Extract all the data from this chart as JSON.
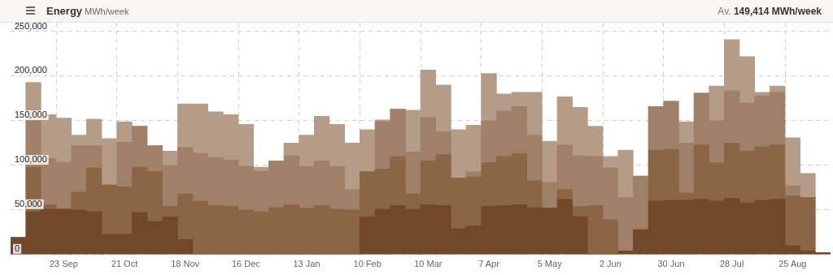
{
  "chart_data": {
    "type": "bar",
    "title": "Energy",
    "subtitle": "MWh/week",
    "annotations": [
      "Av. 149,414 MWh/week"
    ],
    "categories": [
      null,
      null,
      null,
      "23 Sep",
      null,
      null,
      null,
      "21 Oct",
      null,
      null,
      null,
      "18 Nov",
      null,
      null,
      null,
      "16 Dec",
      null,
      null,
      null,
      "13 Jan",
      null,
      null,
      null,
      "10 Feb",
      null,
      null,
      null,
      "10 Mar",
      null,
      null,
      null,
      "7 Apr",
      null,
      null,
      null,
      "5 May",
      null,
      null,
      null,
      "2 Jun",
      null,
      null,
      null,
      "30 Jun",
      null,
      null,
      null,
      "28 Jul",
      null,
      null,
      null,
      "25 Aug",
      null,
      null
    ],
    "stacked": true,
    "series": [
      {
        "color": "#71492a",
        "values": [
          19000,
          48000,
          51000,
          51000,
          50000,
          48000,
          23000,
          23000,
          47000,
          37000,
          42000,
          17000,
          0,
          0,
          0,
          0,
          0,
          0,
          0,
          0,
          0,
          0,
          0,
          42000,
          51000,
          55000,
          51000,
          56000,
          55000,
          29000,
          32000,
          54000,
          55000,
          56000,
          53000,
          52000,
          62000,
          43000,
          0,
          0,
          4000,
          28000,
          60000,
          61000,
          61000,
          62000,
          60000,
          63000,
          58000,
          61000,
          62000,
          10000,
          4000,
          2000
        ]
      },
      {
        "color": "#8a6646",
        "values": [
          0,
          50000,
          5000,
          0,
          20000,
          49000,
          55000,
          53000,
          51000,
          56000,
          12000,
          51000,
          60000,
          55000,
          54000,
          50000,
          48000,
          53000,
          56000,
          52000,
          55000,
          51000,
          50000,
          51000,
          45000,
          55000,
          17000,
          49000,
          57000,
          57000,
          55000,
          49000,
          55000,
          57000,
          30000,
          0,
          11000,
          11000,
          55000,
          39000,
          0,
          0,
          57000,
          57000,
          8000,
          61000,
          43000,
          62000,
          58000,
          60000,
          61000,
          56000,
          60000,
          0
        ]
      },
      {
        "color": "#a08068",
        "values": [
          0,
          52000,
          52000,
          53000,
          52000,
          25000,
          0,
          50000,
          46000,
          29000,
          46000,
          52000,
          54000,
          54000,
          52000,
          49000,
          46000,
          52000,
          55000,
          47000,
          50000,
          48000,
          23000,
          0,
          53000,
          53000,
          47000,
          49000,
          26000,
          0,
          6000,
          47000,
          51000,
          53000,
          51000,
          29000,
          50000,
          57000,
          55000,
          58000,
          60000,
          60000,
          49000,
          54000,
          56000,
          58000,
          47000,
          59000,
          54000,
          57000,
          59000,
          11000,
          0,
          0
        ]
      },
      {
        "color": "#b49c88",
        "values": [
          0,
          43000,
          49000,
          49000,
          12000,
          30000,
          52000,
          23000,
          0,
          0,
          16000,
          49000,
          55000,
          51000,
          51000,
          47000,
          4000,
          0,
          14000,
          35000,
          50000,
          47000,
          52000,
          47000,
          2000,
          0,
          47000,
          53000,
          52000,
          54000,
          52000,
          53000,
          19000,
          16000,
          48000,
          46000,
          54000,
          54000,
          34000,
          13000,
          53000,
          0,
          0,
          0,
          24000,
          0,
          39000,
          57000,
          52000,
          4000,
          7000,
          54000,
          27000,
          0
        ]
      }
    ],
    "ylim": [
      0,
      260000
    ],
    "yticks": [
      0,
      {
        "value": 50000,
        "label": "50,000"
      },
      {
        "value": 100000,
        "label": "100,000"
      },
      {
        "value": 150000,
        "label": "150,000"
      },
      {
        "value": 200000,
        "label": "200,000"
      },
      {
        "value": 250000,
        "label": "250,000"
      }
    ],
    "grid": true
  }
}
